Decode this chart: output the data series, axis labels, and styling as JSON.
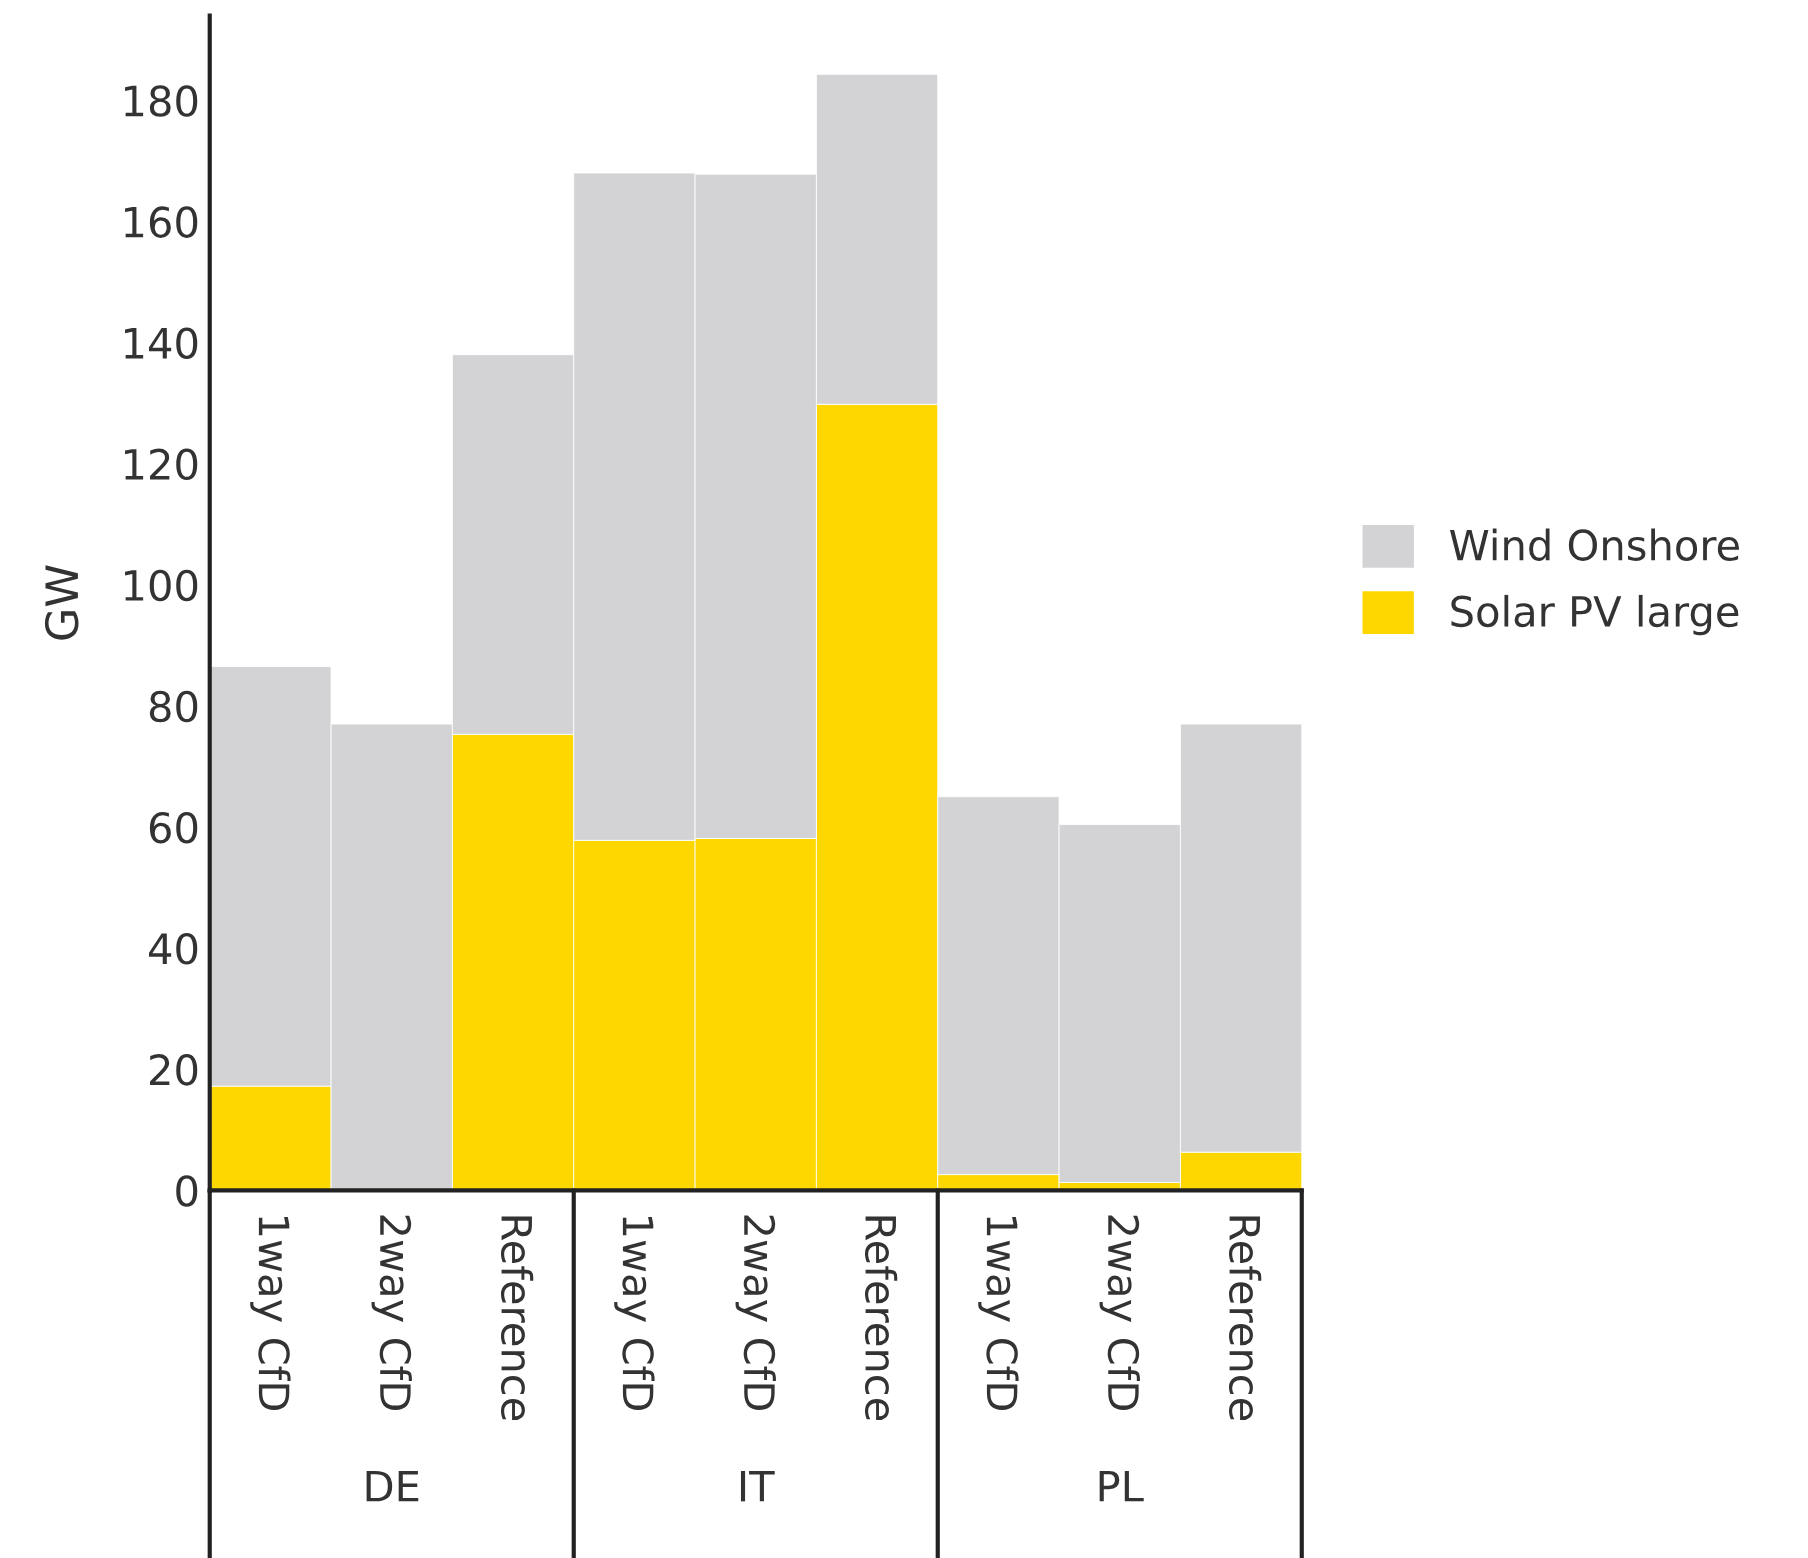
{
  "chart_data": {
    "type": "bar",
    "stacked": true,
    "ylabel": "GW",
    "categories": [
      "1way CfD",
      "2way CfD",
      "Reference",
      "1way CfD",
      "2way CfD",
      "Reference",
      "1way CfD",
      "2way CfD",
      "Reference"
    ],
    "annotations": [
      "DE",
      "IT",
      "PL"
    ],
    "series": [
      {
        "name": "Solar PV large",
        "color": "#ffd700",
        "values": [
          17.2,
          0,
          75.3,
          57.8,
          58.1,
          129.8,
          2.6,
          1.3,
          6.3
        ]
      },
      {
        "name": "Wind Onshore",
        "color": "#d3d3d5",
        "values": [
          69.3,
          77,
          62.7,
          110.2,
          109.7,
          54.5,
          62.4,
          59.1,
          70.7
        ]
      }
    ],
    "ylim": [
      0,
      194
    ],
    "yticks": [
      0,
      20,
      40,
      60,
      80,
      100,
      120,
      140,
      160,
      180
    ],
    "grid": false,
    "legend": "right"
  }
}
